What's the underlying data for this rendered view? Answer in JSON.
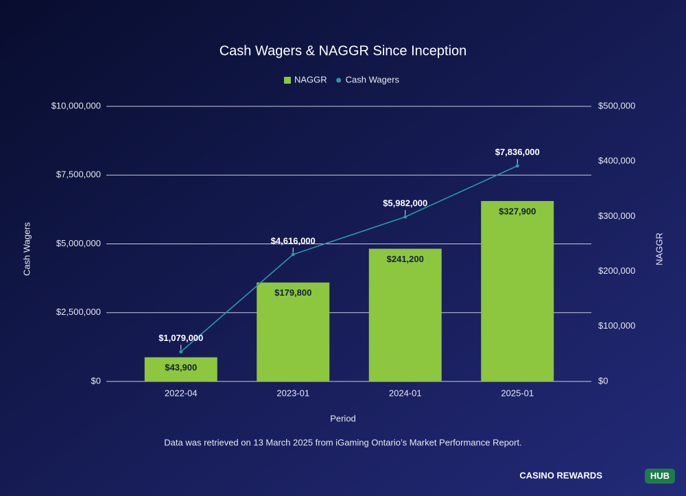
{
  "chart_data": {
    "type": "bar",
    "title": "Cash Wagers & NAGGR Since Inception",
    "x_label": "Period",
    "y_label": "Cash Wagers",
    "y2_label": "NAGGR",
    "categories": [
      "2022-04",
      "2023-01",
      "2024-01",
      "2025-01"
    ],
    "series": [
      {
        "name": "NAGGR",
        "type": "bar",
        "axis": "y2",
        "color": "#8dc63f",
        "values": [
          43900,
          179800,
          241200,
          327900
        ],
        "value_labels": [
          "$43,900",
          "$179,800",
          "$241,200",
          "$327,900"
        ]
      },
      {
        "name": "Cash Wagers",
        "type": "line",
        "axis": "y",
        "color": "#2a9aa8",
        "values": [
          1079000,
          4616000,
          5982000,
          7836000
        ],
        "value_labels": [
          "$1,079,000",
          "$4,616,000",
          "$5,982,000",
          "$7,836,000"
        ]
      }
    ],
    "ylim": [
      0,
      10000000
    ],
    "yticks": [
      {
        "value": 0,
        "label": "$0"
      },
      {
        "value": 2500000,
        "label": "$2,500,000"
      },
      {
        "value": 5000000,
        "label": "$5,000,000"
      },
      {
        "value": 7500000,
        "label": "$7,500,000"
      },
      {
        "value": 10000000,
        "label": "$10,000,000"
      }
    ],
    "y2lim": [
      0,
      500000
    ],
    "y2ticks": [
      {
        "value": 0,
        "label": "$0"
      },
      {
        "value": 100000,
        "label": "$100,000"
      },
      {
        "value": 200000,
        "label": "$200,000"
      },
      {
        "value": 300000,
        "label": "$300,000"
      },
      {
        "value": 400000,
        "label": "$400,000"
      },
      {
        "value": 500000,
        "label": "$500,000"
      }
    ],
    "grid": true,
    "legend": "top",
    "note": "Data was retrieved on 13 March 2025 from iGaming Ontario’s Market Performance Report."
  },
  "brand": {
    "name": "CASINO REWARDS",
    "badge": "HUB"
  }
}
